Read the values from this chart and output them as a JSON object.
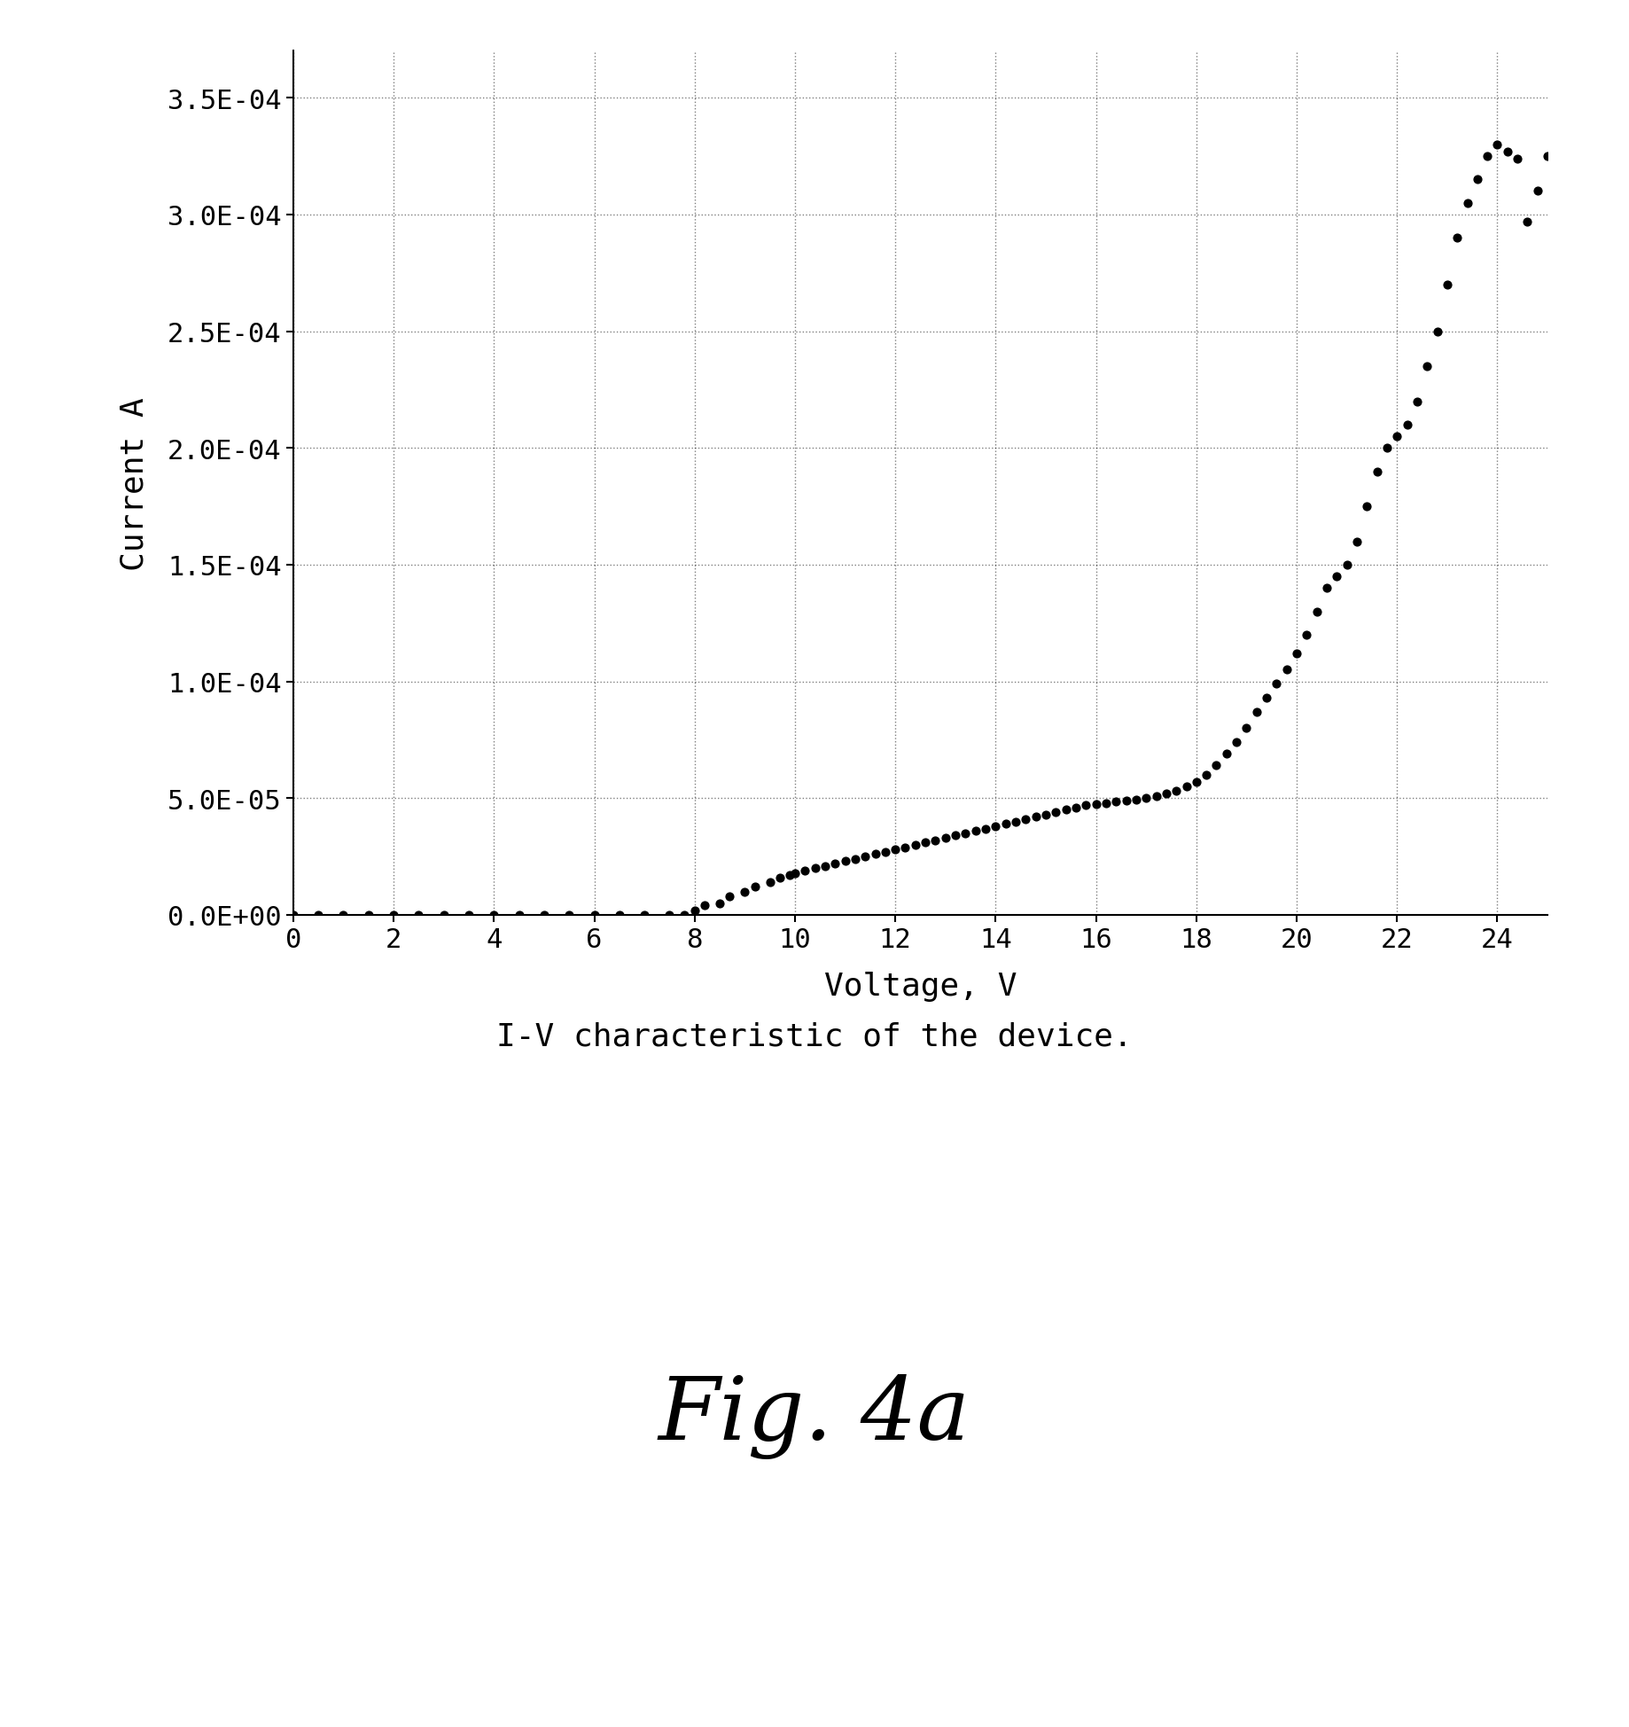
{
  "title": "I-V characteristic of the device.",
  "fig_label": "Fig. 4a",
  "xlabel": "Voltage, V",
  "ylabel": "Current A",
  "xlim": [
    0,
    25
  ],
  "ylim": [
    0,
    0.00037
  ],
  "xticks": [
    0,
    2,
    4,
    6,
    8,
    10,
    12,
    14,
    16,
    18,
    20,
    22,
    24
  ],
  "ytick_labels": [
    "0.0E+00",
    "5.0E-05",
    "1.0E-04",
    "1.5E-04",
    "2.0E-04",
    "2.5E-04",
    "3.0E-04",
    "3.5E-04"
  ],
  "ytick_values": [
    0.0,
    5e-05,
    0.0001,
    0.00015,
    0.0002,
    0.00025,
    0.0003,
    0.00035
  ],
  "dot_color": "#000000",
  "dot_size": 40,
  "background_color": "#ffffff",
  "x_data": [
    0.0,
    0.5,
    1.0,
    1.5,
    2.0,
    2.5,
    3.0,
    3.5,
    4.0,
    4.5,
    5.0,
    5.5,
    6.0,
    6.5,
    7.0,
    7.5,
    7.8,
    8.0,
    8.2,
    8.5,
    8.7,
    9.0,
    9.2,
    9.5,
    9.7,
    9.9,
    10.0,
    10.2,
    10.4,
    10.6,
    10.8,
    11.0,
    11.2,
    11.4,
    11.6,
    11.8,
    12.0,
    12.2,
    12.4,
    12.6,
    12.8,
    13.0,
    13.2,
    13.4,
    13.6,
    13.8,
    14.0,
    14.2,
    14.4,
    14.6,
    14.8,
    15.0,
    15.2,
    15.4,
    15.6,
    15.8,
    16.0,
    16.2,
    16.4,
    16.6,
    16.8,
    17.0,
    17.2,
    17.4,
    17.6,
    17.8,
    18.0,
    18.2,
    18.4,
    18.6,
    18.8,
    19.0,
    19.2,
    19.4,
    19.6,
    19.8,
    20.0,
    20.2,
    20.4,
    20.6,
    20.8,
    21.0,
    21.2,
    21.4,
    21.6,
    21.8,
    22.0,
    22.2,
    22.4,
    22.6,
    22.8,
    23.0,
    23.2,
    23.4,
    23.6,
    23.8,
    24.0,
    24.2,
    24.4,
    24.6,
    24.8,
    25.0
  ],
  "y_data": [
    0.0,
    0.0,
    0.0,
    0.0,
    0.0,
    0.0,
    0.0,
    0.0,
    0.0,
    0.0,
    0.0,
    0.0,
    0.0,
    0.0,
    0.0,
    0.0,
    0.0,
    2e-06,
    4e-06,
    5e-06,
    8e-06,
    1e-05,
    1.2e-05,
    1.4e-05,
    1.6e-05,
    1.7e-05,
    1.8e-05,
    1.9e-05,
    2e-05,
    2.1e-05,
    2.2e-05,
    2.3e-05,
    2.4e-05,
    2.5e-05,
    2.6e-05,
    2.7e-05,
    2.8e-05,
    2.9e-05,
    3e-05,
    3.1e-05,
    3.2e-05,
    3.3e-05,
    3.4e-05,
    3.5e-05,
    3.6e-05,
    3.7e-05,
    3.8e-05,
    3.9e-05,
    4e-05,
    4.1e-05,
    4.2e-05,
    4.3e-05,
    4.4e-05,
    4.5e-05,
    4.6e-05,
    4.7e-05,
    4.75e-05,
    4.8e-05,
    4.85e-05,
    4.9e-05,
    4.95e-05,
    5e-05,
    5.1e-05,
    5.2e-05,
    5.3e-05,
    5.5e-05,
    5.7e-05,
    6e-05,
    6.4e-05,
    6.9e-05,
    7.4e-05,
    8e-05,
    8.7e-05,
    9.3e-05,
    9.9e-05,
    0.000105,
    0.000112,
    0.00012,
    0.00013,
    0.00014,
    0.000145,
    0.00015,
    0.00016,
    0.000175,
    0.00019,
    0.0002,
    0.000205,
    0.00021,
    0.00022,
    0.000235,
    0.00025,
    0.00027,
    0.00029,
    0.000305,
    0.000315,
    0.000325,
    0.00033,
    0.000327,
    0.000324,
    0.000297,
    0.00031,
    0.000325
  ]
}
